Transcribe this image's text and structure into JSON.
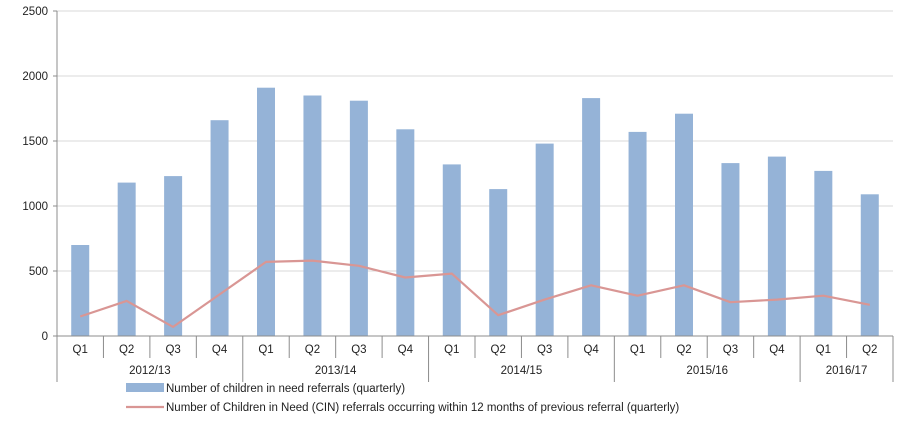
{
  "chart_data": {
    "type": "bar",
    "title": "",
    "xlabel": "",
    "ylabel": "",
    "ylim": [
      0,
      2500
    ],
    "yticks": [
      0,
      500,
      1000,
      1500,
      2000,
      2500
    ],
    "grid": true,
    "legend_position": "bottom",
    "categories": [
      "Q1",
      "Q2",
      "Q3",
      "Q4",
      "Q1",
      "Q2",
      "Q3",
      "Q4",
      "Q1",
      "Q2",
      "Q3",
      "Q4",
      "Q1",
      "Q2",
      "Q3",
      "Q4",
      "Q1",
      "Q2"
    ],
    "groups": [
      {
        "label": "2012/13",
        "count": 4
      },
      {
        "label": "2013/14",
        "count": 4
      },
      {
        "label": "2014/15",
        "count": 4
      },
      {
        "label": "2015/16",
        "count": 4
      },
      {
        "label": "2016/17",
        "count": 2
      }
    ],
    "series": [
      {
        "name": "Number of children in need referrals (quarterly)",
        "type": "bar",
        "color": "#95b3d7",
        "values": [
          700,
          1180,
          1230,
          1660,
          1910,
          1850,
          1810,
          1590,
          1320,
          1130,
          1480,
          1830,
          1570,
          1710,
          1330,
          1380,
          1270,
          1090
        ]
      },
      {
        "name": "Number of Children in Need (CIN) referrals occurring within 12 months of previous referral (quarterly)",
        "type": "line",
        "color": "#d99694",
        "values": [
          150,
          270,
          70,
          320,
          570,
          580,
          540,
          450,
          480,
          160,
          280,
          390,
          310,
          390,
          260,
          280,
          310,
          240
        ]
      }
    ]
  }
}
